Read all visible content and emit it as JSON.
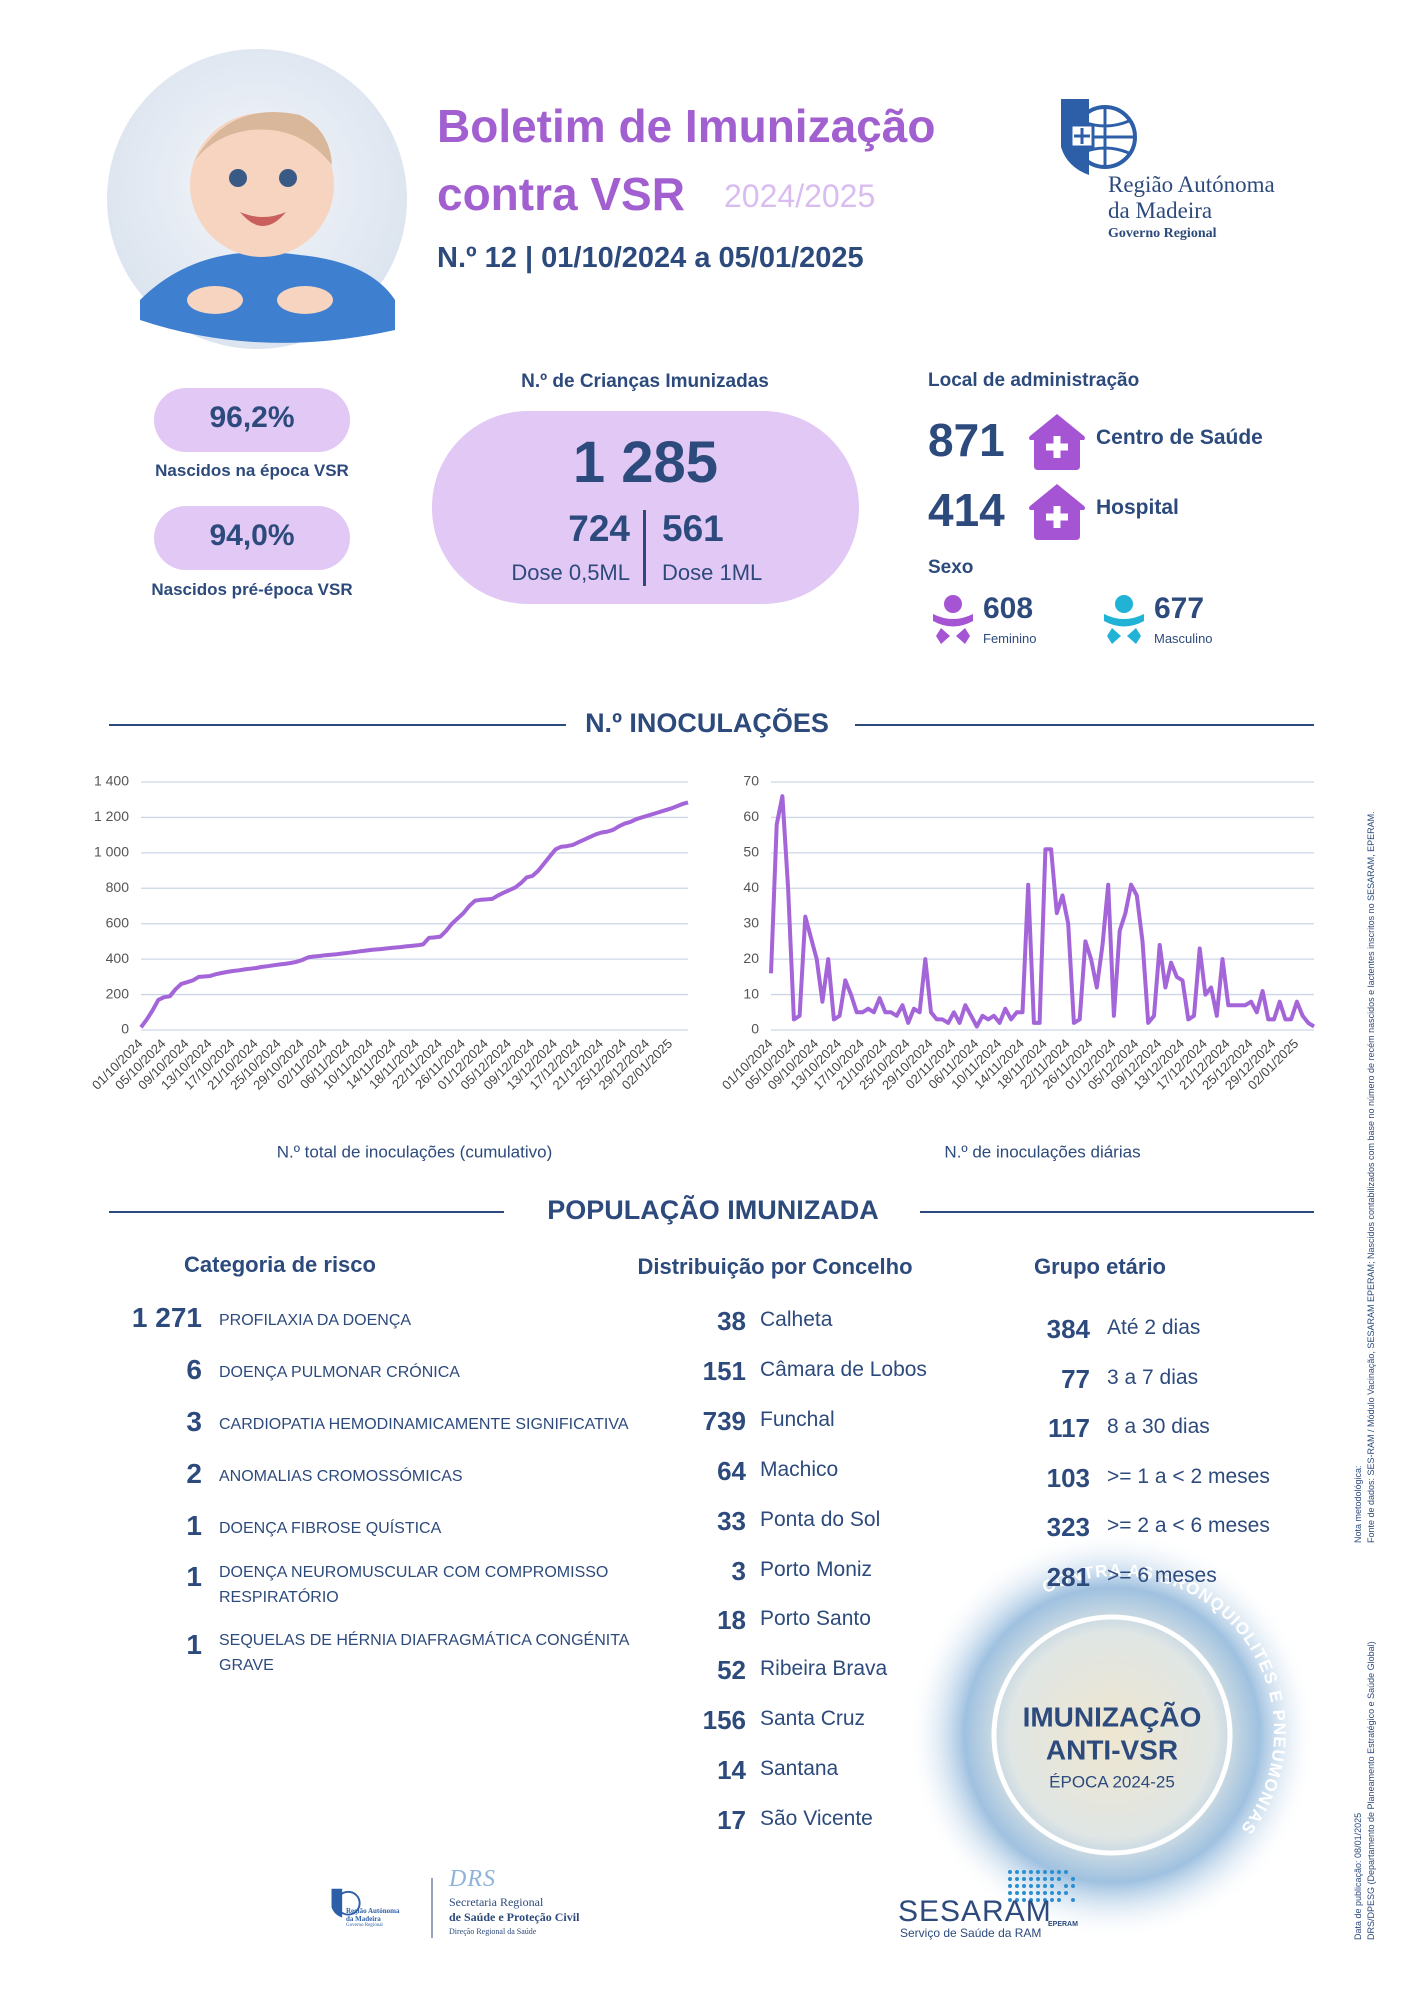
{
  "header": {
    "title_line1": "Boletim de Imunização",
    "title_line2": "contra VSR",
    "season": "2024/2025",
    "subtitle": "N.º 12 | 01/10/2024 a 05/01/2025"
  },
  "logo": {
    "line1": "Região Autónoma",
    "line2": "da Madeira",
    "line3": "Governo Regional"
  },
  "coverage": [
    {
      "value": "96,2%",
      "label": "Nascidos na época VSR"
    },
    {
      "value": "94,0%",
      "label": "Nascidos pré-época VSR"
    }
  ],
  "immunized": {
    "title": "N.º de Crianças Imunizadas",
    "total": "1 285",
    "doses": [
      {
        "value": "724",
        "label": "Dose 0,5ML"
      },
      {
        "value": "561",
        "label": "Dose 1ML"
      }
    ]
  },
  "location": {
    "title": "Local de administração",
    "items": [
      {
        "value": "871",
        "label": "Centro de Saúde"
      },
      {
        "value": "414",
        "label": "Hospital"
      }
    ]
  },
  "sex": {
    "title": "Sexo",
    "items": [
      {
        "value": "608",
        "label": "Feminino"
      },
      {
        "value": "677",
        "label": "Masculino"
      }
    ]
  },
  "sections": [
    "N.º INOCULAÇÕES",
    "POPULAÇÃO IMUNIZADA"
  ],
  "chart_data": [
    {
      "type": "line",
      "xlabel": "N.º total de inoculações (cumulativo)",
      "color": "#a465d8",
      "grid": true,
      "ylim": [
        0,
        1400
      ],
      "yticks": [
        0,
        200,
        400,
        600,
        800,
        {
          "value": 1000,
          "label": "1 000"
        },
        {
          "value": 1200,
          "label": "1 200"
        },
        {
          "value": 1400,
          "label": "1 400"
        }
      ],
      "categories": [
        "01/10/2024",
        null,
        null,
        null,
        "05/10/2024",
        null,
        null,
        null,
        "09/10/2024",
        null,
        null,
        null,
        "13/10/2024",
        null,
        null,
        null,
        "17/10/2024",
        null,
        null,
        null,
        "21/10/2024",
        null,
        null,
        null,
        "25/10/2024",
        null,
        null,
        null,
        "29/10/2024",
        null,
        null,
        null,
        "02/11/2024",
        null,
        null,
        null,
        "06/11/2024",
        null,
        null,
        null,
        "10/11/2024",
        null,
        null,
        null,
        "14/11/2024",
        null,
        null,
        null,
        "18/11/2024",
        null,
        null,
        null,
        "22/11/2024",
        null,
        null,
        null,
        "26/11/2024",
        null,
        null,
        null,
        "01/12/2024",
        null,
        null,
        null,
        "05/12/2024",
        null,
        null,
        null,
        "09/12/2024",
        null,
        null,
        null,
        "13/12/2024",
        null,
        null,
        null,
        "17/12/2024",
        null,
        null,
        null,
        "21/12/2024",
        null,
        null,
        null,
        "25/12/2024",
        null,
        null,
        null,
        "29/12/2024",
        null,
        null,
        null,
        "02/01/2025",
        null,
        null,
        null
      ],
      "values": [
        15,
        60,
        110,
        170,
        185,
        190,
        230,
        260,
        270,
        280,
        300,
        302,
        305,
        315,
        322,
        328,
        333,
        337,
        342,
        346,
        350,
        356,
        360,
        365,
        370,
        373,
        378,
        385,
        395,
        410,
        415,
        418,
        422,
        425,
        428,
        432,
        436,
        440,
        444,
        448,
        452,
        455,
        458,
        462,
        465,
        468,
        472,
        475,
        478,
        483,
        520,
        523,
        527,
        560,
        600,
        630,
        660,
        700,
        730,
        735,
        737,
        740,
        760,
        775,
        790,
        805,
        830,
        862,
        870,
        900,
        940,
        980,
        1020,
        1035,
        1038,
        1045,
        1060,
        1075,
        1090,
        1105,
        1115,
        1120,
        1130,
        1150,
        1165,
        1175,
        1190,
        1200,
        1210,
        1220,
        1230,
        1240,
        1250,
        1262,
        1275,
        1285
      ]
    },
    {
      "type": "line",
      "xlabel": "N.º de inoculações diárias",
      "color": "#a465d8",
      "grid": true,
      "ylim": [
        0,
        70
      ],
      "yticks": [
        0,
        10,
        20,
        30,
        40,
        50,
        60,
        70
      ],
      "categories": [
        "01/10/2024",
        null,
        null,
        null,
        "05/10/2024",
        null,
        null,
        null,
        "09/10/2024",
        null,
        null,
        null,
        "13/10/2024",
        null,
        null,
        null,
        "17/10/2024",
        null,
        null,
        null,
        "21/10/2024",
        null,
        null,
        null,
        "25/10/2024",
        null,
        null,
        null,
        "29/10/2024",
        null,
        null,
        null,
        "02/11/2024",
        null,
        null,
        null,
        "06/11/2024",
        null,
        null,
        null,
        "10/11/2024",
        null,
        null,
        null,
        "14/11/2024",
        null,
        null,
        null,
        "18/11/2024",
        null,
        null,
        null,
        "22/11/2024",
        null,
        null,
        null,
        "26/11/2024",
        null,
        null,
        null,
        "01/12/2024",
        null,
        null,
        null,
        "05/12/2024",
        null,
        null,
        null,
        "09/12/2024",
        null,
        null,
        null,
        "13/12/2024",
        null,
        null,
        null,
        "17/12/2024",
        null,
        null,
        null,
        "21/12/2024",
        null,
        null,
        null,
        "25/12/2024",
        null,
        null,
        null,
        "29/12/2024",
        null,
        null,
        null,
        "02/01/2025",
        null,
        null,
        null
      ],
      "values": [
        16,
        58,
        66,
        40,
        3,
        4,
        32,
        26,
        20,
        8,
        20,
        3,
        4,
        14,
        10,
        5,
        5,
        6,
        5,
        9,
        5,
        5,
        4,
        7,
        2,
        6,
        5,
        20,
        5,
        3,
        3,
        2,
        5,
        2,
        7,
        4,
        1,
        4,
        3,
        4,
        2,
        6,
        3,
        5,
        5,
        41,
        2,
        2,
        51,
        51,
        33,
        38,
        30,
        2,
        3,
        25,
        20,
        12,
        24,
        41,
        4,
        28,
        33,
        41,
        38,
        25,
        2,
        4,
        24,
        12,
        19,
        15,
        14,
        3,
        4,
        23,
        10,
        12,
        4,
        20,
        7,
        7,
        7,
        7,
        8,
        5,
        11,
        3,
        3,
        8,
        3,
        3,
        8,
        4,
        2,
        1
      ]
    }
  ],
  "risk": {
    "title": "Categoria de risco",
    "rows": [
      {
        "value": "1 271",
        "label": "PROFILAXIA DA DOENÇA"
      },
      {
        "value": "6",
        "label": "DOENÇA PULMONAR CRÓNICA"
      },
      {
        "value": "3",
        "label": "CARDIOPATIA HEMODINAMICAMENTE SIGNIFICATIVA"
      },
      {
        "value": "2",
        "label": "ANOMALIAS CROMOSSÓMICAS"
      },
      {
        "value": "1",
        "label": "DOENÇA FIBROSE QUÍSTICA"
      },
      {
        "value": "1",
        "label": "DOENÇA NEUROMUSCULAR COM COMPROMISSO RESPIRATÓRIO"
      },
      {
        "value": "1",
        "label": "SEQUELAS DE HÉRNIA DIAFRAGMÁTICA CONGÉNITA GRAVE"
      }
    ]
  },
  "municipality": {
    "title": "Distribuição por Concelho",
    "rows": [
      {
        "value": "38",
        "label": "Calheta"
      },
      {
        "value": "151",
        "label": "Câmara de Lobos"
      },
      {
        "value": "739",
        "label": "Funchal"
      },
      {
        "value": "64",
        "label": "Machico"
      },
      {
        "value": "33",
        "label": "Ponta do Sol"
      },
      {
        "value": "3",
        "label": "Porto Moniz"
      },
      {
        "value": "18",
        "label": "Porto Santo"
      },
      {
        "value": "52",
        "label": "Ribeira Brava"
      },
      {
        "value": "156",
        "label": "Santa Cruz"
      },
      {
        "value": "14",
        "label": "Santana"
      },
      {
        "value": "17",
        "label": "São Vicente"
      }
    ]
  },
  "age": {
    "title": "Grupo etário",
    "rows": [
      {
        "value": "384",
        "label": "Até 2 dias"
      },
      {
        "value": "77",
        "label": "3 a 7 dias"
      },
      {
        "value": "117",
        "label": "8 a 30 dias"
      },
      {
        "value": "103",
        "label": ">= 1 a < 2 meses"
      },
      {
        "value": "323",
        "label": ">= 2 a < 6 meses"
      },
      {
        "value": "281",
        "label": ">= 6 meses"
      }
    ]
  },
  "badge": {
    "arc": "CONTRA AS BRONQUIOLITES E PNEUMONIAS",
    "line1": "IMUNIZAÇÃO",
    "line2": "ANTI-VSR",
    "line3": "ÉPOCA 2024-25"
  },
  "side_notes": [
    [
      "Nota metodológica:",
      "Fonte de dados: SES-RAM / Módulo Vacinação, SESARAM EPERAM; Nascidos contabilizados com base no número de recém nascidos e lactentes inscritos no SESARAM, EPERAM."
    ],
    [
      "Data de publicação: 08/01/2025",
      "DRS/DPESG (Departamento de Planeamento Estratégico e Saúde Global)"
    ]
  ],
  "footer": {
    "drs": {
      "mark": "DRS",
      "line1": "Secretaria Regional",
      "line2": "de Saúde e Proteção Civil",
      "line3": "Direção Regional da Saúde"
    },
    "sesaram": {
      "name": "SESARAM",
      "suffix": "EPERAM",
      "tagline": "Serviço de Saúde da RAM"
    }
  }
}
